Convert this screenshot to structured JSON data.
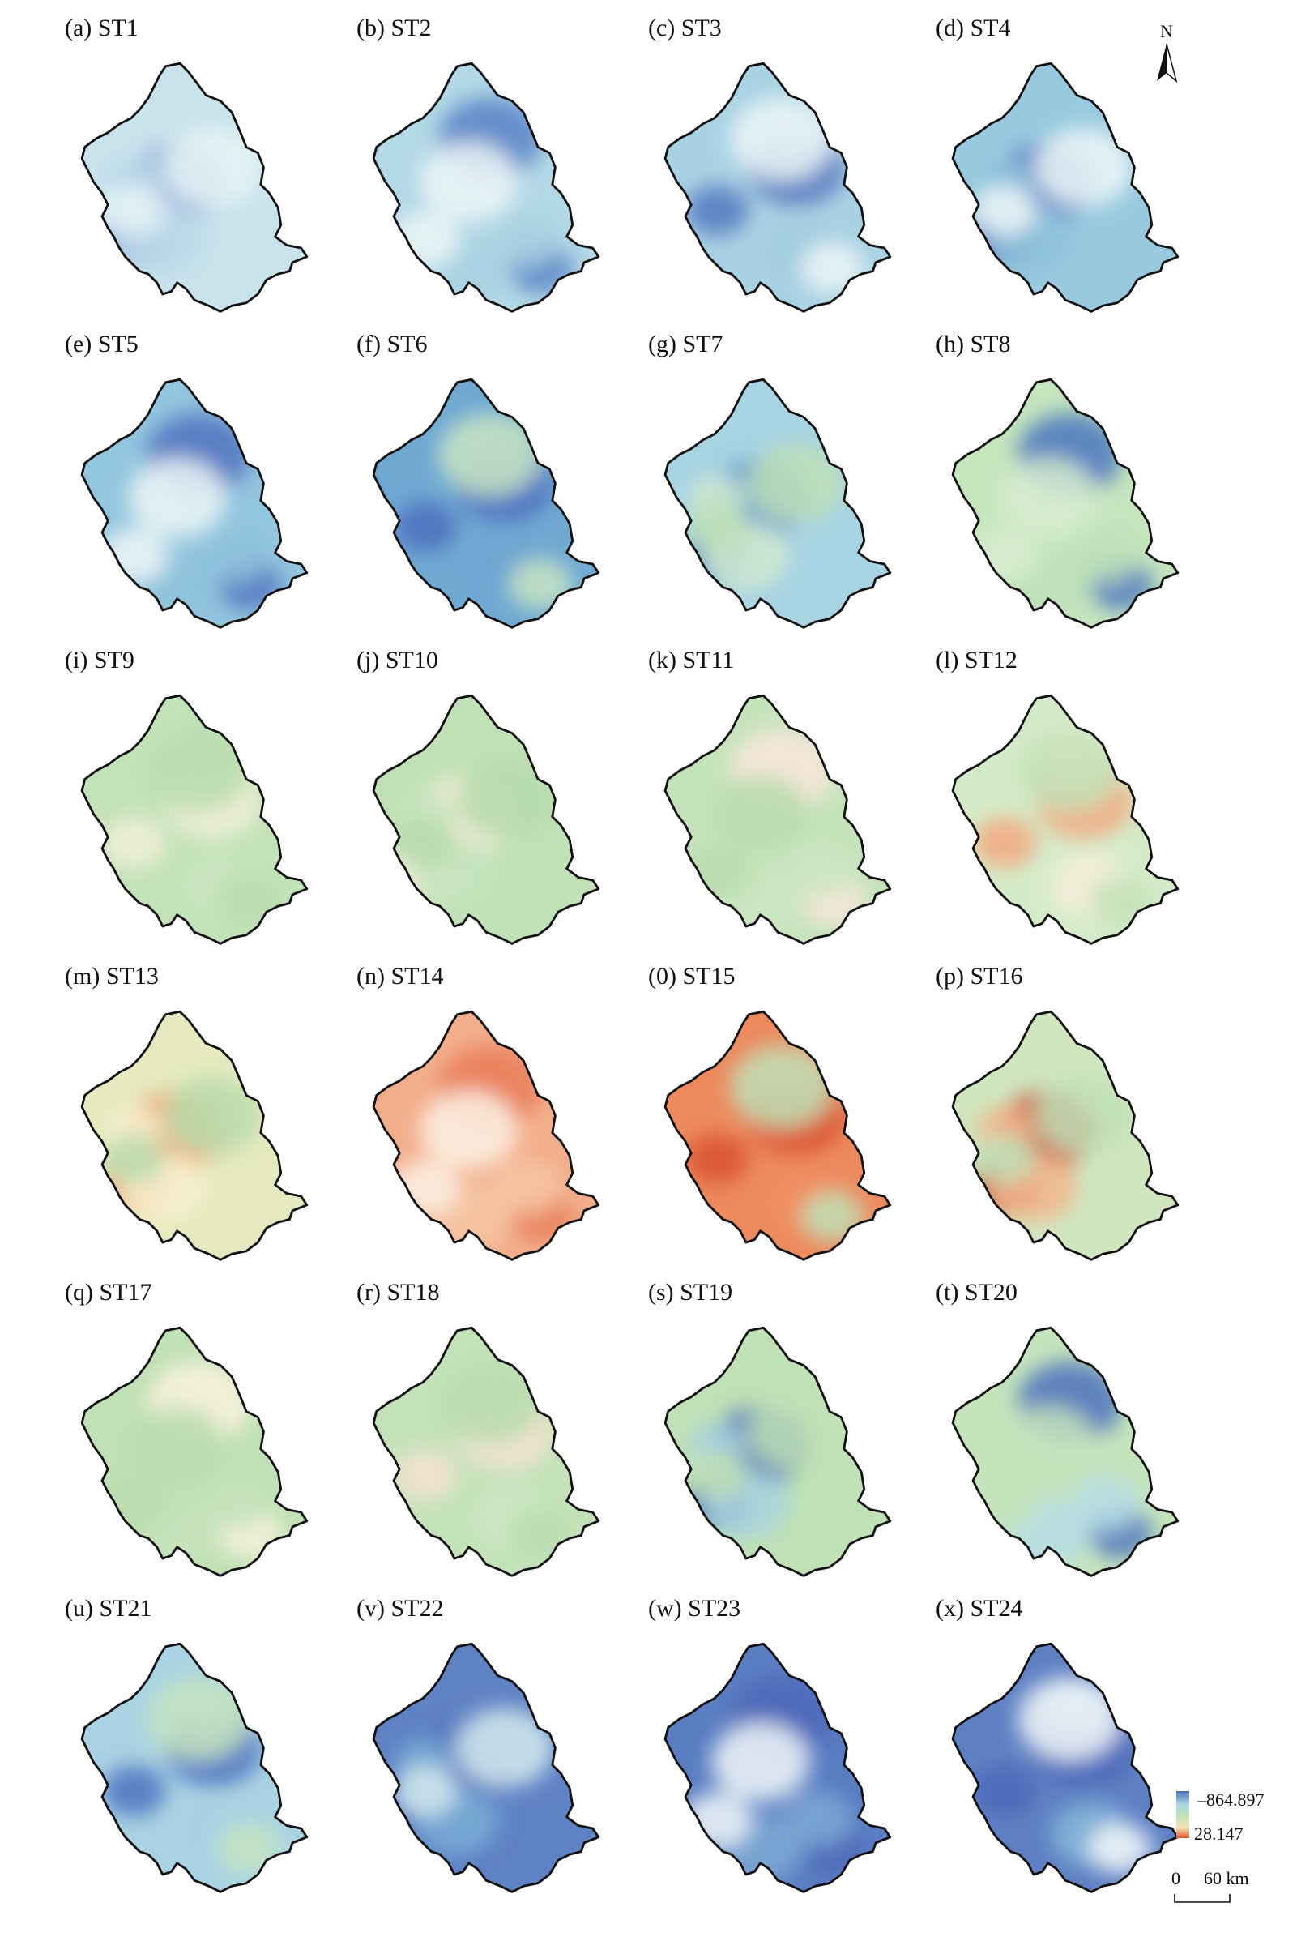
{
  "figure": {
    "panels": [
      {
        "label": "(a) ST1",
        "palette": [
          "#9ab0dc",
          "#b9d8e8",
          "#e8f4f6"
        ],
        "base": "#c9e3ec"
      },
      {
        "label": "(b) ST2",
        "palette": [
          "#5b83c5",
          "#a8d1e2",
          "#eef7f7"
        ],
        "base": "#b3d8e6"
      },
      {
        "label": "(c) ST3",
        "palette": [
          "#5578c0",
          "#a2cde1",
          "#eef7f7"
        ],
        "base": "#a8d2e3"
      },
      {
        "label": "(d) ST4",
        "palette": [
          "#5574c0",
          "#8fc3dc",
          "#f0f8f8"
        ],
        "base": "#98c9df"
      },
      {
        "label": "(e) ST5",
        "palette": [
          "#5273bf",
          "#8ec2dc",
          "#eef7f7"
        ],
        "base": "#92c5de"
      },
      {
        "label": "(f) ST6",
        "palette": [
          "#4d6fbf",
          "#6ea6d0",
          "#c9e5c3"
        ],
        "base": "#6fa9d2"
      },
      {
        "label": "(g) ST7",
        "palette": [
          "#5a93ca",
          "#d2ead0",
          "#bfe0b7"
        ],
        "base": "#a7d3e2"
      },
      {
        "label": "(h) ST8",
        "palette": [
          "#4b76c0",
          "#bde1b8",
          "#d7edd0"
        ],
        "base": "#c5e5bd"
      },
      {
        "label": "(i) ST9",
        "palette": [
          "#f3f0d9",
          "#c9e5c0",
          "#b8dcae"
        ],
        "base": "#c2e2b8"
      },
      {
        "label": "(j) ST10",
        "palette": [
          "#fbeede",
          "#c6e4bd",
          "#b5dbab"
        ],
        "base": "#c0e1b6"
      },
      {
        "label": "(k) ST11",
        "palette": [
          "#fbe6dc",
          "#cbe6c2",
          "#b8dcae"
        ],
        "base": "#c5e3bb"
      },
      {
        "label": "(l) ST12",
        "palette": [
          "#f3a87f",
          "#f8efdc",
          "#c3e2b7"
        ],
        "base": "#d4ebc9"
      },
      {
        "label": "(m) ST13",
        "palette": [
          "#f0a276",
          "#f8f0cf",
          "#b8dcad"
        ],
        "base": "#e6e9bf"
      },
      {
        "label": "(n) ST14",
        "palette": [
          "#e97c57",
          "#f6c7a4",
          "#fdf2e6"
        ],
        "base": "#f2ae8b"
      },
      {
        "label": "(0) ST15",
        "palette": [
          "#d9512d",
          "#f08e62",
          "#bfe0b7"
        ],
        "base": "#ec8a5e"
      },
      {
        "label": "(p) ST16",
        "palette": [
          "#c9412c",
          "#f3b68c",
          "#bfe0b7"
        ],
        "base": "#cfe6bf"
      },
      {
        "label": "(q) ST17",
        "palette": [
          "#fbf2df",
          "#c6e3bc",
          "#b8dcae"
        ],
        "base": "#c0e0b5"
      },
      {
        "label": "(r) ST18",
        "palette": [
          "#f7e3d2",
          "#cde7c3",
          "#b8dcae"
        ],
        "base": "#c3e2b9"
      },
      {
        "label": "(s) ST19",
        "palette": [
          "#3f67b6",
          "#a9d4e1",
          "#c0e1b6"
        ],
        "base": "#c0e1b6"
      },
      {
        "label": "(t) ST20",
        "palette": [
          "#4c72bd",
          "#b6dde6",
          "#c5e4bc"
        ],
        "base": "#c5e4bc"
      },
      {
        "label": "(u) ST21",
        "palette": [
          "#4d72c0",
          "#a8d2e3",
          "#c7e5c0"
        ],
        "base": "#a9d3e3"
      },
      {
        "label": "(v) ST22",
        "palette": [
          "#4d6abb",
          "#7aaed6",
          "#d6ecee"
        ],
        "base": "#5f82c4"
      },
      {
        "label": "(w) ST23",
        "palette": [
          "#4c68ba",
          "#7ea9d3",
          "#f2f8f8"
        ],
        "base": "#5a7dc2"
      },
      {
        "label": "(x) ST24",
        "palette": [
          "#4b68ba",
          "#86b7d9",
          "#f4f9f9"
        ],
        "base": "#5e80c3"
      }
    ],
    "north_arrow": {
      "label": "N"
    },
    "legend": {
      "max_label": "–864.897",
      "min_label": "28.147",
      "colors": [
        "#4a6fbf",
        "#a8d7e2",
        "#c2e3b6",
        "#f6e3b5",
        "#e0572e"
      ]
    },
    "scale_bar": {
      "zero_label": "0",
      "distance_label": "60 km"
    }
  }
}
